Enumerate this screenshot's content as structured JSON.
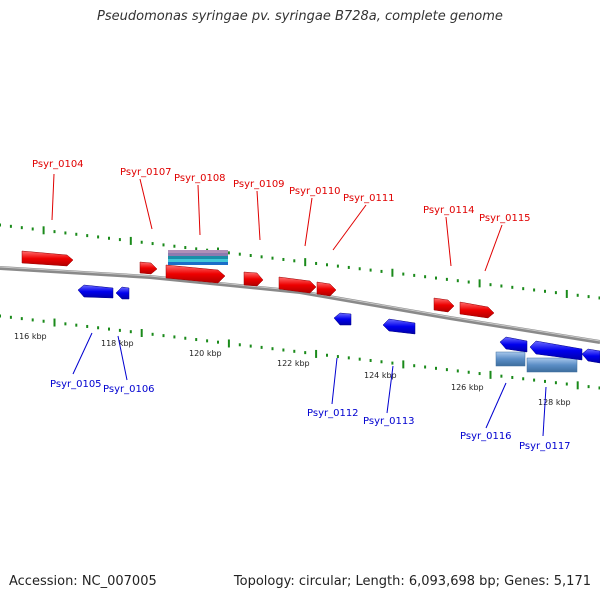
{
  "header": {
    "title": "Pseudomonas syringae pv. syringae B728a, complete genome"
  },
  "footer": {
    "accession": "Accession: NC_007005",
    "topology": "Topology: circular; Length: 6,093,698 bp; Genes: 5,171"
  },
  "colors": {
    "forward": "#ff0000",
    "reverse": "#0000ee",
    "backbone": "#8a8a8a",
    "ticks": "#1a8a1a",
    "rna_feature": "#5b8ec6"
  },
  "scale_labels": [
    "116 kbp",
    "118 kbp",
    "120 kbp",
    "122 kbp",
    "124 kbp",
    "126 kbp",
    "128 kbp"
  ],
  "forward_labels": [
    "Psyr_0104",
    "Psyr_0107",
    "Psyr_0108",
    "Psyr_0109",
    "Psyr_0110",
    "Psyr_0111",
    "Psyr_0114",
    "Psyr_0115"
  ],
  "reverse_labels": [
    "Psyr_0105",
    "Psyr_0106",
    "Psyr_0112",
    "Psyr_0113",
    "Psyr_0116",
    "Psyr_0117"
  ]
}
